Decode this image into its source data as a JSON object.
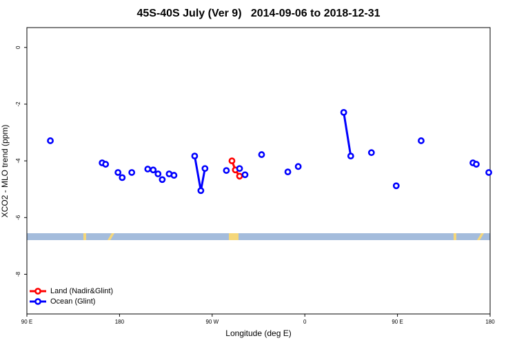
{
  "chart_data": {
    "type": "line",
    "title": "45S-40S July (Ver 9)   2014-09-06 to 2018-12-31",
    "x_label": "Longitude (deg E)",
    "y_label": "XCO2 - MLO trend (ppm)",
    "xlim": [
      90,
      540
    ],
    "ylim": [
      -9.4,
      0.7
    ],
    "xticks": [
      {
        "value": 90,
        "label": "90 E"
      },
      {
        "value": 180,
        "label": "180"
      },
      {
        "value": 270,
        "label": "90 W"
      },
      {
        "value": 360,
        "label": "0"
      },
      {
        "value": 450,
        "label": "90 E"
      },
      {
        "value": 540,
        "label": "180"
      }
    ],
    "yticks": [
      0,
      -2,
      -4,
      -6,
      -8
    ],
    "legend": "bottomleft",
    "series": [
      {
        "name": "Land (Nadir&Glint)",
        "color": "#ff0000",
        "x": [
          289.2,
          292.5,
          296.6
        ],
        "values": [
          -4.0,
          -4.32,
          -4.54
        ]
      },
      {
        "name": "Ocean (Glint)",
        "color": "#0000ff",
        "x": [
          112.8,
          null,
          163.1,
          null,
          166.5,
          null,
          178.5,
          null,
          182.6,
          null,
          191.9,
          null,
          207.4,
          null,
          212.7,
          null,
          217.4,
          null,
          221.5,
          null,
          228.2,
          null,
          232.9,
          null,
          253.0,
          259.0,
          263.0,
          null,
          283.8,
          null,
          296.6,
          null,
          301.9,
          null,
          318.0,
          null,
          343.5,
          null,
          353.6,
          null,
          397.8,
          404.6,
          null,
          424.7,
          null,
          448.8,
          null,
          473.0,
          null,
          523.3,
          null,
          526.6,
          null,
          538.7
        ],
        "values": [
          -3.29,
          null,
          -4.07,
          null,
          -4.12,
          null,
          -4.41,
          null,
          -4.59,
          null,
          -4.41,
          null,
          -4.29,
          null,
          -4.32,
          null,
          -4.46,
          null,
          -4.66,
          null,
          -4.46,
          null,
          -4.51,
          null,
          -3.83,
          -5.05,
          -4.27,
          null,
          -4.34,
          null,
          -4.27,
          null,
          -4.49,
          null,
          -3.78,
          null,
          -4.39,
          null,
          -4.2,
          null,
          -2.29,
          -3.83,
          null,
          -3.71,
          null,
          -4.88,
          null,
          -3.29,
          null,
          -4.07,
          null,
          -4.12,
          null,
          -4.41
        ]
      }
    ]
  }
}
